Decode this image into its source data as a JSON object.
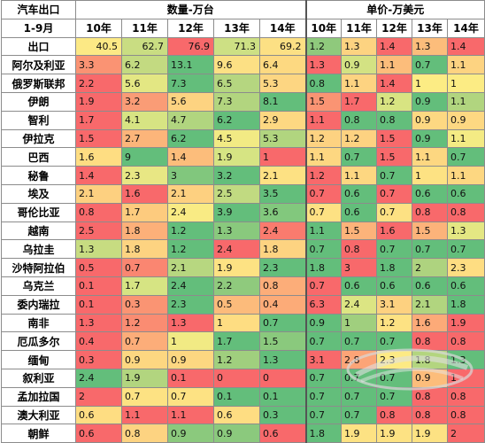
{
  "table": {
    "title": "汽车出口",
    "period": "1-9月",
    "group_quantity": "数量-万台",
    "group_price": "单价-万美元",
    "years": [
      "10年",
      "11年",
      "12年",
      "13年",
      "14年"
    ],
    "rows": [
      {
        "country": "出口",
        "qty": [
          "40.5",
          "62.7",
          "76.9",
          "71.3",
          "69.2"
        ],
        "qty_colors": [
          "#fce985",
          "#c9dd82",
          "#f8696b",
          "#cde084",
          "#fce084"
        ],
        "price": [
          "1.2",
          "1.3",
          "1.4",
          "1.3",
          "1.4"
        ],
        "price_colors": [
          "#8fc97c",
          "#fdd381",
          "#f8696b",
          "#fcbd7b",
          "#f8696b"
        ]
      },
      {
        "country": "阿尔及利亚",
        "qty": [
          "3.3",
          "6.2",
          "13.1",
          "9.6",
          "6.4"
        ],
        "qty_colors": [
          "#fa9373",
          "#c3da81",
          "#63be7b",
          "#fce084",
          "#fdd981"
        ],
        "price": [
          "1.3",
          "0.9",
          "1.1",
          "0.7",
          "1.1"
        ],
        "price_colors": [
          "#f8696b",
          "#d3e283",
          "#fcbd7b",
          "#63be7b",
          "#fdd381"
        ]
      },
      {
        "country": "俄罗斯联邦",
        "qty": [
          "2.2",
          "5.6",
          "7.3",
          "6.5",
          "5.3"
        ],
        "qty_colors": [
          "#f8696b",
          "#e3e783",
          "#63be7b",
          "#b5d680",
          "#fdd682"
        ],
        "price": [
          "0.8",
          "1.1",
          "1.4",
          "1",
          "1"
        ],
        "price_colors": [
          "#63be7b",
          "#fdd381",
          "#f8696b",
          "#fcec84",
          "#fcec84"
        ]
      },
      {
        "country": "伊朗",
        "qty": [
          "1.9",
          "3.2",
          "5.6",
          "7.3",
          "8.1"
        ],
        "qty_colors": [
          "#f8696b",
          "#fa9c76",
          "#fdd381",
          "#b2d57f",
          "#63be7b"
        ],
        "price": [
          "1.5",
          "1.7",
          "1.2",
          "0.9",
          "1.1"
        ],
        "price_colors": [
          "#fa9473",
          "#f8696b",
          "#d8e482",
          "#63be7b",
          "#b1d57f"
        ]
      },
      {
        "country": "智利",
        "qty": [
          "1.7",
          "4.1",
          "4.7",
          "6.2",
          "2.9"
        ],
        "qty_colors": [
          "#f8696b",
          "#d7e483",
          "#b1d57f",
          "#63be7b",
          "#fdd882"
        ],
        "price": [
          "1.1",
          "0.8",
          "0.8",
          "0.9",
          "0.9"
        ],
        "price_colors": [
          "#f8696b",
          "#63be7b",
          "#63be7b",
          "#fdd882",
          "#fdd882"
        ]
      },
      {
        "country": "伊拉克",
        "qty": [
          "1.5",
          "2.7",
          "6.2",
          "4.5",
          "5.3"
        ],
        "qty_colors": [
          "#f8696b",
          "#fcb57a",
          "#63be7b",
          "#f2ea84",
          "#b1d57f"
        ],
        "price": [
          "1.2",
          "1.2",
          "1.5",
          "0.9",
          "1.1"
        ],
        "price_colors": [
          "#fdd281",
          "#fdd281",
          "#f8696b",
          "#63be7b",
          "#f4eb84"
        ]
      },
      {
        "country": "巴西",
        "qty": [
          "1.6",
          "9",
          "1.4",
          "1.9",
          "1"
        ],
        "qty_colors": [
          "#fedd82",
          "#63be7b",
          "#fcbd7b",
          "#d6e483",
          "#f8696b"
        ],
        "price": [
          "1.1",
          "0.7",
          "1.5",
          "1.1",
          "0.7"
        ],
        "price_colors": [
          "#fdd781",
          "#63be7b",
          "#f8696b",
          "#fdd781",
          "#63be7b"
        ]
      },
      {
        "country": "秘鲁",
        "qty": [
          "1.4",
          "2.3",
          "3",
          "3.2",
          "2.1"
        ],
        "qty_colors": [
          "#f8696b",
          "#e8e784",
          "#81c77d",
          "#63be7b",
          "#fde183"
        ],
        "price": [
          "1.2",
          "1.1",
          "0.7",
          "1",
          "1.1"
        ],
        "price_colors": [
          "#f8696b",
          "#fdd781",
          "#63be7b",
          "#fde283",
          "#fdd781"
        ]
      },
      {
        "country": "埃及",
        "qty": [
          "2.1",
          "1.6",
          "2.1",
          "2.5",
          "3.5"
        ],
        "qty_colors": [
          "#fdd080",
          "#f8696b",
          "#fdd080",
          "#c1da81",
          "#63be7b"
        ],
        "price": [
          "0.7",
          "0.6",
          "0.7",
          "0.6",
          "0.6"
        ],
        "price_colors": [
          "#f8696b",
          "#63be7b",
          "#f8696b",
          "#63be7b",
          "#63be7b"
        ]
      },
      {
        "country": "哥伦比亚",
        "qty": [
          "0.8",
          "1.7",
          "2.4",
          "3.9",
          "3.6"
        ],
        "qty_colors": [
          "#f8696b",
          "#fdcb7e",
          "#f9eb84",
          "#63be7b",
          "#82c87d"
        ],
        "price": [
          "0.7",
          "0.6",
          "0.7",
          "0.8",
          "0.8"
        ],
        "price_colors": [
          "#fde183",
          "#63be7b",
          "#fde183",
          "#f8696b",
          "#f8696b"
        ]
      },
      {
        "country": "越南",
        "qty": [
          "2.5",
          "1.8",
          "1.2",
          "1.3",
          "2.4"
        ],
        "qty_colors": [
          "#f8696b",
          "#fcb079",
          "#63be7b",
          "#89c97d",
          "#fa7b6e"
        ],
        "price": [
          "1.1",
          "1.5",
          "1.6",
          "1.5",
          "1.3"
        ],
        "price_colors": [
          "#63be7b",
          "#fcb37a",
          "#f8696b",
          "#fcb37a",
          "#e4e783"
        ]
      },
      {
        "country": "乌拉圭",
        "qty": [
          "1.3",
          "1.8",
          "1.2",
          "2.4",
          "1.8"
        ],
        "qty_colors": [
          "#c7dc81",
          "#fdd381",
          "#63be7b",
          "#f8696b",
          "#fdd381"
        ],
        "price": [
          "0.7",
          "0.8",
          "0.7",
          "0.7",
          "0.7"
        ],
        "price_colors": [
          "#63be7b",
          "#f8696b",
          "#63be7b",
          "#63be7b",
          "#63be7b"
        ]
      },
      {
        "country": "沙特阿拉伯",
        "qty": [
          "0.5",
          "0.7",
          "2.1",
          "1.9",
          "2.3"
        ],
        "qty_colors": [
          "#f8696b",
          "#fa8671",
          "#b7d780",
          "#fde283",
          "#63be7b"
        ],
        "price": [
          "1.8",
          "3",
          "1.8",
          "2",
          "2.3"
        ],
        "price_colors": [
          "#63be7b",
          "#f8696b",
          "#63be7b",
          "#aed37f",
          "#fedd82"
        ]
      },
      {
        "country": "乌克兰",
        "qty": [
          "0.1",
          "1.7",
          "2.4",
          "2.2",
          "0.8"
        ],
        "qty_colors": [
          "#f8696b",
          "#d6e483",
          "#63be7b",
          "#8fca7d",
          "#fcad79"
        ],
        "price": [
          "0.7",
          "0.6",
          "0.6",
          "0.6",
          "0.6"
        ],
        "price_colors": [
          "#f8696b",
          "#63be7b",
          "#63be7b",
          "#63be7b",
          "#63be7b"
        ]
      },
      {
        "country": "委内瑞拉",
        "qty": [
          "0.1",
          "0.3",
          "2.3",
          "0.5",
          "0.4"
        ],
        "qty_colors": [
          "#f8696b",
          "#fa9473",
          "#63be7b",
          "#fcbb7b",
          "#fcab78"
        ],
        "price": [
          "6.3",
          "2.4",
          "3.1",
          "2.1",
          "1.8"
        ],
        "price_colors": [
          "#f8696b",
          "#dce583",
          "#fdd180",
          "#b1d57f",
          "#63be7b"
        ]
      },
      {
        "country": "南非",
        "qty": [
          "1.3",
          "1.2",
          "1.3",
          "1",
          "0.7"
        ],
        "qty_colors": [
          "#f8696b",
          "#fa8c72",
          "#f8696b",
          "#fedd82",
          "#63be7b"
        ],
        "price": [
          "0.9",
          "1",
          "1.2",
          "1.6",
          "1.9"
        ],
        "price_colors": [
          "#63be7b",
          "#a0cf7e",
          "#fde283",
          "#fcaa78",
          "#f8696b"
        ]
      },
      {
        "country": "厄瓜多尔",
        "qty": [
          "0.4",
          "0.7",
          "1",
          "1.7",
          "1.5"
        ],
        "qty_colors": [
          "#f8696b",
          "#fcad79",
          "#f1ea84",
          "#63be7b",
          "#8ac97d"
        ],
        "price": [
          "0.7",
          "0.7",
          "0.7",
          "0.8",
          "0.8"
        ],
        "price_colors": [
          "#63be7b",
          "#63be7b",
          "#63be7b",
          "#f8696b",
          "#f8696b"
        ]
      },
      {
        "country": "缅甸",
        "qty": [
          "0.3",
          "0.9",
          "0.9",
          "1.2",
          "1.3"
        ],
        "qty_colors": [
          "#f8696b",
          "#fdd781",
          "#fdd781",
          "#a0cf7e",
          "#63be7b"
        ],
        "price": [
          "3.1",
          "2.8",
          "2.3",
          "1.8",
          "1.3"
        ],
        "price_colors": [
          "#f8696b",
          "#fca477",
          "#fdea84",
          "#b3d57f",
          "#63be7b"
        ]
      },
      {
        "country": "叙利亚",
        "qty": [
          "2.4",
          "1.9",
          "0.1",
          "0",
          "0"
        ],
        "qty_colors": [
          "#63be7b",
          "#b2d57f",
          "#f8696b",
          "#f8696b",
          "#f8696b"
        ],
        "price": [
          "0.7",
          "0.7",
          "0.7",
          "0.9",
          "1"
        ],
        "price_colors": [
          "#63be7b",
          "#63be7b",
          "#63be7b",
          "#fcbd7b",
          "#f8696b"
        ]
      },
      {
        "country": "孟加拉国",
        "qty": [
          "2",
          "0.7",
          "0.7",
          "0.1",
          "0.1"
        ],
        "qty_colors": [
          "#f8696b",
          "#fde283",
          "#fde283",
          "#63be7b",
          "#63be7b"
        ],
        "price": [
          "0.7",
          "0.7",
          "0.7",
          "0.8",
          "0.8"
        ],
        "price_colors": [
          "#63be7b",
          "#63be7b",
          "#63be7b",
          "#f8696b",
          "#f8696b"
        ]
      },
      {
        "country": "澳大利亚",
        "qty": [
          "0.6",
          "1.1",
          "1.1",
          "0.6",
          "0.3"
        ],
        "qty_colors": [
          "#fedd82",
          "#f8696b",
          "#f8696b",
          "#fedd82",
          "#63be7b"
        ],
        "price": [
          "0.7",
          "0.7",
          "0.8",
          "0.8",
          "0.8"
        ],
        "price_colors": [
          "#63be7b",
          "#63be7b",
          "#f8696b",
          "#f8696b",
          "#f8696b"
        ]
      },
      {
        "country": "朝鲜",
        "qty": [
          "0.6",
          "0.8",
          "0.9",
          "0.9",
          "0.6"
        ],
        "qty_colors": [
          "#f8696b",
          "#fdd381",
          "#8bc97d",
          "#8bc97d",
          "#f8696b"
        ],
        "price": [
          "1.8",
          "1.9",
          "1.9",
          "1.9",
          "2"
        ],
        "price_colors": [
          "#63be7b",
          "#fde283",
          "#fde283",
          "#fde283",
          "#f8696b"
        ]
      }
    ]
  },
  "watermark": {
    "icon": "watermark-logo"
  }
}
